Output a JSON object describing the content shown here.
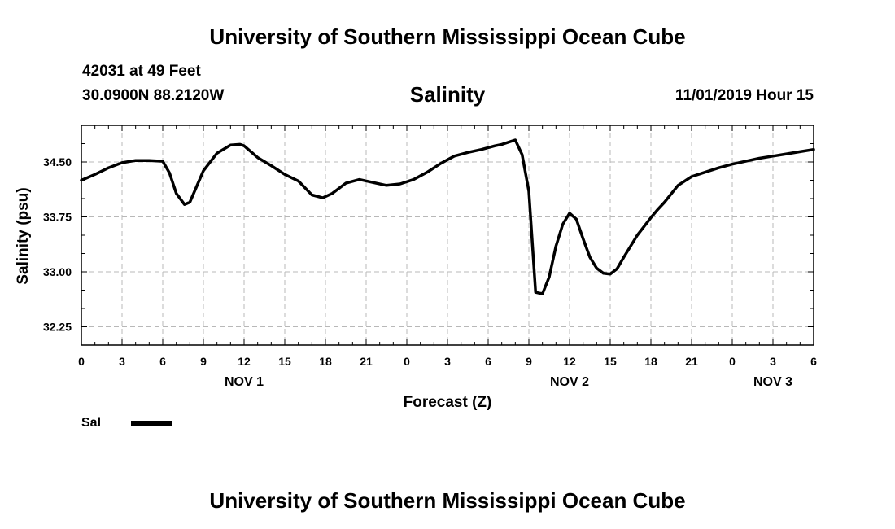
{
  "header": {
    "main_title": "University of Southern Mississippi Ocean Cube",
    "station": "42031 at 49 Feet",
    "location": "30.0900N 88.2120W",
    "datetime": "11/01/2019 Hour 15"
  },
  "footer": {
    "title": "University of Southern Mississippi Ocean Cube"
  },
  "legend": {
    "items": [
      {
        "label": "Sal",
        "color": "#000000"
      }
    ]
  },
  "chart_data": {
    "type": "line",
    "title": "Salinity",
    "xlabel": "Forecast (Z)",
    "ylabel": "Salinity (psu)",
    "xlim": [
      0,
      54
    ],
    "ylim": [
      32.0,
      35.0
    ],
    "grid": true,
    "x_ticks": [
      {
        "x": 0,
        "label": "0"
      },
      {
        "x": 3,
        "label": "3"
      },
      {
        "x": 6,
        "label": "6"
      },
      {
        "x": 9,
        "label": "9"
      },
      {
        "x": 12,
        "label": "12"
      },
      {
        "x": 15,
        "label": "15"
      },
      {
        "x": 18,
        "label": "18"
      },
      {
        "x": 21,
        "label": "21"
      },
      {
        "x": 24,
        "label": "0"
      },
      {
        "x": 27,
        "label": "3"
      },
      {
        "x": 30,
        "label": "6"
      },
      {
        "x": 33,
        "label": "9"
      },
      {
        "x": 36,
        "label": "12"
      },
      {
        "x": 39,
        "label": "15"
      },
      {
        "x": 42,
        "label": "18"
      },
      {
        "x": 45,
        "label": "21"
      },
      {
        "x": 48,
        "label": "0"
      },
      {
        "x": 51,
        "label": "3"
      },
      {
        "x": 54,
        "label": "6"
      }
    ],
    "day_labels": [
      {
        "x": 12,
        "label": "NOV 1"
      },
      {
        "x": 36,
        "label": "NOV 2"
      },
      {
        "x": 51,
        "label": "NOV 3"
      }
    ],
    "y_ticks": [
      {
        "y": 32.25,
        "label": "32.25"
      },
      {
        "y": 33.0,
        "label": "33.00"
      },
      {
        "y": 33.75,
        "label": "33.75"
      },
      {
        "y": 34.5,
        "label": "34.50"
      }
    ],
    "series": [
      {
        "name": "Sal",
        "color": "#000000",
        "x": [
          0,
          1,
          2,
          3,
          4,
          5,
          6,
          6.5,
          7,
          7.6,
          8,
          9,
          10,
          11,
          11.7,
          12,
          13,
          14,
          15,
          16,
          17,
          17.8,
          18.5,
          19.5,
          20.5,
          21.5,
          22.5,
          23.5,
          24.5,
          25.5,
          26.5,
          27.5,
          28.5,
          29.5,
          30.5,
          31,
          32,
          32.5,
          33,
          33.5,
          34,
          34.5,
          35,
          35.5,
          36,
          36.5,
          37,
          37.5,
          38,
          38.5,
          39,
          39.5,
          40,
          40.5,
          41,
          41.5,
          42,
          42.5,
          43,
          44,
          45,
          46,
          47,
          48,
          49,
          50,
          51,
          52,
          53,
          54
        ],
        "y": [
          34.25,
          34.33,
          34.42,
          34.49,
          34.52,
          34.52,
          34.51,
          34.35,
          34.07,
          33.92,
          33.95,
          34.38,
          34.62,
          34.73,
          34.74,
          34.72,
          34.56,
          34.45,
          34.33,
          34.24,
          34.05,
          34.01,
          34.07,
          34.21,
          34.26,
          34.22,
          34.18,
          34.2,
          34.26,
          34.36,
          34.48,
          34.58,
          34.63,
          34.67,
          34.72,
          34.74,
          34.8,
          34.6,
          34.1,
          32.72,
          32.7,
          32.93,
          33.35,
          33.65,
          33.8,
          33.72,
          33.45,
          33.2,
          33.05,
          32.98,
          32.97,
          33.04,
          33.2,
          33.35,
          33.5,
          33.62,
          33.74,
          33.85,
          33.95,
          34.18,
          34.3,
          34.36,
          34.42,
          34.47,
          34.51,
          34.55,
          34.58,
          34.61,
          34.64,
          34.67
        ]
      }
    ]
  }
}
